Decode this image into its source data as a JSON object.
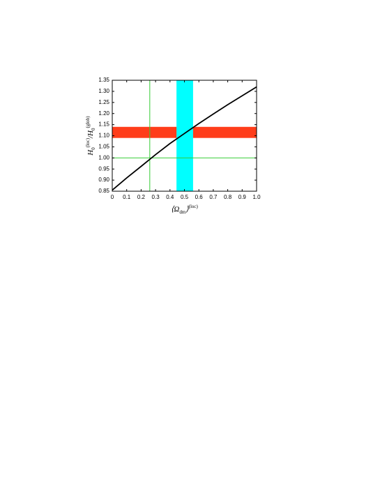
{
  "chart_data": {
    "type": "line",
    "x_label_parts": [
      {
        "text": "⟨Ω",
        "role": "base"
      },
      {
        "text": "dm",
        "role": "sub"
      },
      {
        "text": "⟩",
        "role": "base"
      },
      {
        "text": "(loc)",
        "role": "sup"
      }
    ],
    "y_label_parts": [
      {
        "text": "H",
        "role": "base"
      },
      {
        "text": "0",
        "role": "sub"
      },
      {
        "text": "(loc)",
        "role": "sup"
      },
      {
        "text": "/H",
        "role": "base"
      },
      {
        "text": "0",
        "role": "sub"
      },
      {
        "text": "(glob)",
        "role": "sup"
      }
    ],
    "x": [
      0,
      0.1,
      0.2,
      0.3,
      0.4,
      0.5,
      0.6,
      0.7,
      0.8,
      0.9,
      1.0
    ],
    "series": [
      {
        "color": "#000000",
        "values": [
          0.855,
          0.91,
          0.962,
          1.015,
          1.065,
          1.11,
          1.155,
          1.198,
          1.24,
          1.28,
          1.32
        ]
      }
    ],
    "bands": [
      {
        "axis": "y",
        "range": [
          1.09,
          1.14
        ],
        "color": "#ff3d1a"
      },
      {
        "axis": "x",
        "range": [
          0.445,
          0.56
        ],
        "color": "#00ffff"
      }
    ],
    "reference_lines": [
      {
        "axis": "x",
        "value": 0.26,
        "color": "#33cc33"
      },
      {
        "axis": "y",
        "value": 1.0,
        "color": "#33cc33"
      }
    ],
    "xlim": [
      0,
      1
    ],
    "ylim": [
      0.85,
      1.35
    ],
    "xticks": [
      0,
      0.1,
      0.2,
      0.3,
      0.4,
      0.5,
      0.6,
      0.7,
      0.8,
      0.9,
      {
        "value": 1,
        "label": "1.0"
      }
    ],
    "yticks": [
      0.85,
      {
        "value": 0.9,
        "label": "0.90"
      },
      0.95,
      {
        "value": 1,
        "label": "1.00"
      },
      1.05,
      {
        "value": 1.1,
        "label": "1.10"
      },
      1.15,
      {
        "value": 1.2,
        "label": "1.20"
      },
      1.25,
      {
        "value": 1.3,
        "label": "1.30"
      },
      1.35
    ]
  }
}
